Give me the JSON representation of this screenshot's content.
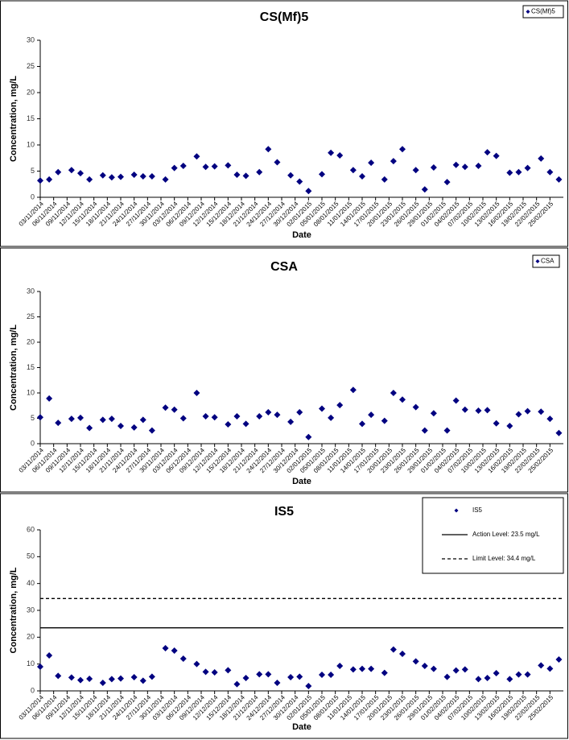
{
  "chart_data": [
    {
      "type": "scatter",
      "title": "CS(Mf)5",
      "xlabel": "Date",
      "ylabel": "Concentration, mg/L",
      "x": [
        "03/11/2014",
        "05/11/2014",
        "07/11/2014",
        "10/11/2014",
        "12/11/2014",
        "14/11/2014",
        "17/11/2014",
        "19/11/2014",
        "21/11/2014",
        "24/11/2014",
        "26/11/2014",
        "28/11/2014",
        "01/12/2014",
        "03/12/2014",
        "05/12/2014",
        "08/12/2014",
        "10/12/2014",
        "12/12/2014",
        "15/12/2014",
        "17/12/2014",
        "19/12/2014",
        "22/12/2014",
        "24/12/2014",
        "26/12/2014",
        "29/12/2014",
        "31/12/2014",
        "02/01/2015",
        "05/01/2015",
        "07/01/2015",
        "09/01/2015",
        "12/01/2015",
        "14/01/2015",
        "16/01/2015",
        "19/01/2015",
        "21/01/2015",
        "23/01/2015",
        "26/01/2015",
        "28/01/2015",
        "30/01/2015",
        "02/02/2015",
        "04/02/2015",
        "06/02/2015",
        "09/02/2015",
        "11/02/2015",
        "13/02/2015",
        "16/02/2015",
        "18/02/2015",
        "20/02/2015",
        "23/02/2015",
        "25/02/2015",
        "27/02/2015"
      ],
      "series": [
        {
          "name": "CS(Mf)5",
          "color": "#000080",
          "values": [
            3.2,
            3.4,
            4.8,
            5.2,
            4.6,
            3.4,
            4.2,
            3.8,
            3.9,
            4.3,
            4.0,
            4.0,
            3.4,
            5.6,
            6.0,
            7.8,
            5.8,
            5.9,
            6.1,
            4.3,
            4.1,
            4.8,
            9.2,
            6.7,
            4.2,
            3.0,
            1.2,
            4.4,
            8.5,
            8.0,
            5.2,
            4.0,
            6.6,
            3.4,
            6.9,
            9.2,
            5.2,
            1.5,
            5.7,
            2.9,
            6.2,
            5.8,
            6.0,
            8.6,
            7.9,
            4.7,
            4.8,
            5.6,
            7.4,
            4.8,
            3.4
          ]
        }
      ],
      "xlim": [
        "03/11/2014",
        "28/02/2015"
      ],
      "xticks": [
        "03/11/2014",
        "06/11/2014",
        "09/11/2014",
        "12/11/2014",
        "15/11/2014",
        "18/11/2014",
        "21/11/2014",
        "24/11/2014",
        "27/11/2014",
        "30/11/2014",
        "03/12/2014",
        "06/12/2014",
        "09/12/2014",
        "12/12/2014",
        "15/12/2014",
        "18/12/2014",
        "21/12/2014",
        "24/12/2014",
        "27/12/2014",
        "30/12/2014",
        "02/01/2015",
        "05/01/2015",
        "08/01/2015",
        "11/01/2015",
        "14/01/2015",
        "17/01/2015",
        "20/01/2015",
        "23/01/2015",
        "26/01/2015",
        "29/01/2015",
        "01/02/2015",
        "04/02/2015",
        "07/02/2015",
        "10/02/2015",
        "13/02/2015",
        "16/02/2015",
        "19/02/2015",
        "22/02/2015",
        "25/02/2015"
      ],
      "ylim": [
        0,
        30
      ],
      "yticks": [
        0,
        5,
        10,
        15,
        20,
        25,
        30
      ],
      "grid": false,
      "legend": "top-right"
    },
    {
      "type": "scatter",
      "title": "CSA",
      "xlabel": "Date",
      "ylabel": "Concentration, mg/L",
      "x": [
        "03/11/2014",
        "05/11/2014",
        "07/11/2014",
        "10/11/2014",
        "12/11/2014",
        "14/11/2014",
        "17/11/2014",
        "19/11/2014",
        "21/11/2014",
        "24/11/2014",
        "26/11/2014",
        "28/11/2014",
        "01/12/2014",
        "03/12/2014",
        "05/12/2014",
        "08/12/2014",
        "10/12/2014",
        "12/12/2014",
        "15/12/2014",
        "17/12/2014",
        "19/12/2014",
        "22/12/2014",
        "24/12/2014",
        "26/12/2014",
        "29/12/2014",
        "31/12/2014",
        "02/01/2015",
        "05/01/2015",
        "07/01/2015",
        "09/01/2015",
        "12/01/2015",
        "14/01/2015",
        "16/01/2015",
        "19/01/2015",
        "21/01/2015",
        "23/01/2015",
        "26/01/2015",
        "28/01/2015",
        "30/01/2015",
        "02/02/2015",
        "04/02/2015",
        "06/02/2015",
        "09/02/2015",
        "11/02/2015",
        "13/02/2015",
        "16/02/2015",
        "18/02/2015",
        "20/02/2015",
        "23/02/2015",
        "25/02/2015",
        "27/02/2015"
      ],
      "series": [
        {
          "name": "CSA",
          "color": "#000080",
          "values": [
            5.2,
            8.9,
            4.1,
            4.9,
            5.1,
            3.1,
            4.7,
            4.9,
            3.5,
            3.2,
            4.7,
            2.6,
            7.1,
            6.7,
            5.0,
            10.0,
            5.4,
            5.2,
            3.8,
            5.4,
            3.9,
            5.4,
            6.2,
            5.7,
            4.3,
            6.2,
            1.3,
            6.9,
            5.1,
            7.6,
            10.6,
            3.9,
            5.7,
            4.5,
            10.0,
            8.7,
            7.2,
            2.6,
            6.0,
            2.6,
            8.5,
            6.7,
            6.5,
            6.6,
            4.0,
            3.5,
            5.8,
            6.4,
            6.3,
            4.9,
            2.1
          ]
        }
      ],
      "xlim": [
        "03/11/2014",
        "28/02/2015"
      ],
      "xticks": [
        "03/11/2014",
        "06/11/2014",
        "09/11/2014",
        "12/11/2014",
        "15/11/2014",
        "18/11/2014",
        "21/11/2014",
        "24/11/2014",
        "27/11/2014",
        "30/11/2014",
        "03/12/2014",
        "06/12/2014",
        "09/12/2014",
        "12/12/2014",
        "15/12/2014",
        "18/12/2014",
        "21/12/2014",
        "24/12/2014",
        "27/12/2014",
        "30/12/2014",
        "02/01/2015",
        "05/01/2015",
        "08/01/2015",
        "11/01/2015",
        "14/01/2015",
        "17/01/2015",
        "20/01/2015",
        "23/01/2015",
        "26/01/2015",
        "29/01/2015",
        "01/02/2015",
        "04/02/2015",
        "07/02/2015",
        "10/02/2015",
        "13/02/2015",
        "16/02/2015",
        "19/02/2015",
        "22/02/2015",
        "25/02/2015"
      ],
      "ylim": [
        0,
        30
      ],
      "yticks": [
        0,
        5,
        10,
        15,
        20,
        25,
        30
      ],
      "grid": false,
      "legend": "top-right"
    },
    {
      "type": "scatter",
      "title": "IS5",
      "xlabel": "Date",
      "ylabel": "Concentration, mg/L",
      "x": [
        "03/11/2014",
        "05/11/2014",
        "07/11/2014",
        "10/11/2014",
        "12/11/2014",
        "14/11/2014",
        "17/11/2014",
        "19/11/2014",
        "21/11/2014",
        "24/11/2014",
        "26/11/2014",
        "28/11/2014",
        "01/12/2014",
        "03/12/2014",
        "05/12/2014",
        "08/12/2014",
        "10/12/2014",
        "12/12/2014",
        "15/12/2014",
        "17/12/2014",
        "19/12/2014",
        "22/12/2014",
        "24/12/2014",
        "26/12/2014",
        "29/12/2014",
        "31/12/2014",
        "02/01/2015",
        "05/01/2015",
        "07/01/2015",
        "09/01/2015",
        "12/01/2015",
        "14/01/2015",
        "16/01/2015",
        "19/01/2015",
        "21/01/2015",
        "23/01/2015",
        "26/01/2015",
        "28/01/2015",
        "30/01/2015",
        "02/02/2015",
        "04/02/2015",
        "06/02/2015",
        "09/02/2015",
        "11/02/2015",
        "13/02/2015",
        "16/02/2015",
        "18/02/2015",
        "20/02/2015",
        "23/02/2015",
        "25/02/2015",
        "27/02/2015"
      ],
      "series": [
        {
          "name": "IS5",
          "color": "#000080",
          "values": [
            9.0,
            13.2,
            5.6,
            5.0,
            4.0,
            4.5,
            3.0,
            4.4,
            4.6,
            5.1,
            3.8,
            5.3,
            15.9,
            15.0,
            12.0,
            10.0,
            7.1,
            6.9,
            7.7,
            2.5,
            4.8,
            6.2,
            6.2,
            3.0,
            5.1,
            5.3,
            1.8,
            6.0,
            6.0,
            9.3,
            8.0,
            8.2,
            8.2,
            6.7,
            15.4,
            13.8,
            11.0,
            9.3,
            8.2,
            5.2,
            7.6,
            8.0,
            4.4,
            4.8,
            6.6,
            4.4,
            6.1,
            6.1,
            9.5,
            8.3,
            11.7
          ]
        }
      ],
      "reference_lines": [
        {
          "name": "Action Level: 23.5 mg/L",
          "value": 23.5,
          "style": "solid",
          "color": "#000000"
        },
        {
          "name": "Limit Level: 34.4 mg/L",
          "value": 34.4,
          "style": "dashed",
          "color": "#000000"
        }
      ],
      "xlim": [
        "03/11/2014",
        "28/02/2015"
      ],
      "xticks": [
        "03/11/2014",
        "06/11/2014",
        "09/11/2014",
        "12/11/2014",
        "15/11/2014",
        "18/11/2014",
        "21/11/2014",
        "24/11/2014",
        "27/11/2014",
        "30/11/2014",
        "03/12/2014",
        "06/12/2014",
        "09/12/2014",
        "12/12/2014",
        "15/12/2014",
        "18/12/2014",
        "21/12/2014",
        "24/12/2014",
        "27/12/2014",
        "30/12/2014",
        "02/01/2015",
        "05/01/2015",
        "08/01/2015",
        "11/01/2015",
        "14/01/2015",
        "17/01/2015",
        "20/01/2015",
        "23/01/2015",
        "26/01/2015",
        "29/01/2015",
        "01/02/2015",
        "04/02/2015",
        "07/02/2015",
        "10/02/2015",
        "13/02/2015",
        "16/02/2015",
        "19/02/2015",
        "22/02/2015",
        "25/02/2015"
      ],
      "ylim": [
        0,
        60
      ],
      "yticks": [
        0,
        10,
        20,
        30,
        40,
        50,
        60
      ],
      "grid": false,
      "legend": "top-right"
    }
  ]
}
